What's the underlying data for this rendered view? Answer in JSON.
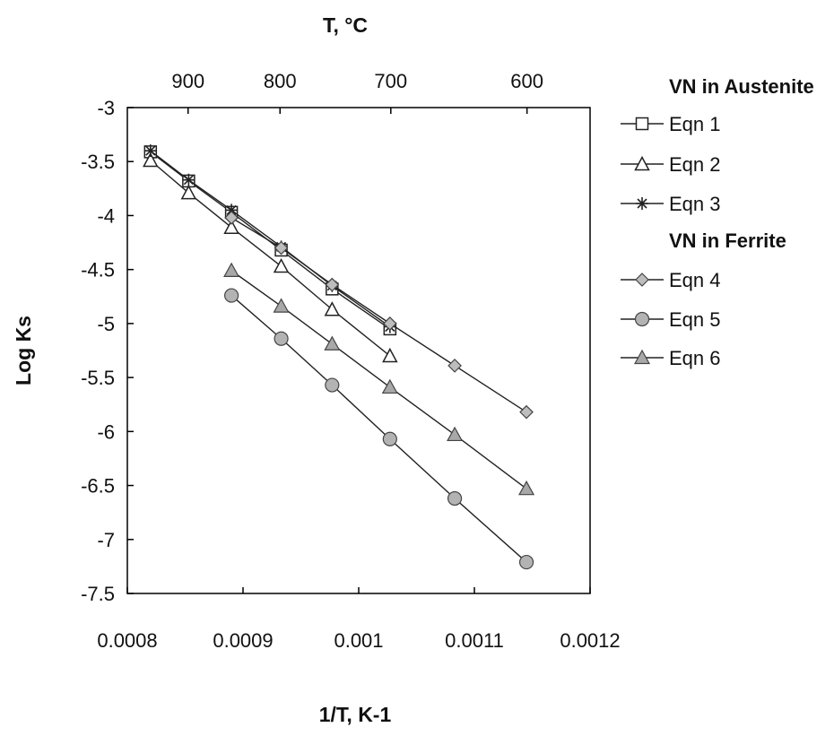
{
  "chart_data": {
    "type": "line",
    "xlabel": "1/T, K-1",
    "ylabel": "Log Ks",
    "x2label": "T, °C",
    "xlim": [
      0.0008,
      0.0012
    ],
    "ylim": [
      -7.5,
      -3
    ],
    "xticks": [
      0.0008,
      0.0009,
      0.001,
      0.0011,
      0.0012
    ],
    "xtick_labels": [
      "0.0008",
      "0.0009",
      "0.001",
      "0.0011",
      "0.0012"
    ],
    "yticks": [
      -3,
      -3.5,
      -4,
      -4.5,
      -5,
      -5.5,
      -6,
      -6.5,
      -7,
      -7.5
    ],
    "ytick_labels": [
      "-3",
      "-3.5",
      "-4",
      "-4.5",
      "-5",
      "-5.5",
      "-6",
      "-6.5",
      "-7",
      "-7.5"
    ],
    "top_axis": {
      "ticks_celsius": [
        900,
        800,
        700,
        600
      ],
      "tick_labels": [
        "900",
        "800",
        "700",
        "600"
      ]
    },
    "grid": false,
    "legend_position": "right",
    "legend_groups": [
      {
        "title": "VN in Austenite",
        "series": [
          0,
          1,
          2
        ]
      },
      {
        "title": "VN in Ferrite",
        "series": [
          3,
          4,
          5
        ]
      }
    ],
    "series": [
      {
        "name": "Eqn 1",
        "marker": "square-open",
        "x": [
          0.00082,
          0.000853,
          0.00089,
          0.000933,
          0.000977,
          0.001027
        ],
        "y": [
          -3.41,
          -3.68,
          -3.97,
          -4.32,
          -4.68,
          -5.05
        ]
      },
      {
        "name": "Eqn 2",
        "marker": "triangle-open",
        "x": [
          0.00082,
          0.000853,
          0.00089,
          0.000933,
          0.000977,
          0.001027
        ],
        "y": [
          -3.49,
          -3.79,
          -4.11,
          -4.47,
          -4.87,
          -5.3
        ]
      },
      {
        "name": "Eqn 3",
        "marker": "asterisk",
        "x": [
          0.00082,
          0.000853,
          0.00089,
          0.000933,
          0.000977,
          0.001027
        ],
        "y": [
          -3.4,
          -3.67,
          -3.95,
          -4.29,
          -4.65,
          -5.03
        ]
      },
      {
        "name": "Eqn 4",
        "marker": "diamond-gray",
        "x": [
          0.00089,
          0.000933,
          0.000977,
          0.001027,
          0.001083,
          0.001145
        ],
        "y": [
          -4.02,
          -4.3,
          -4.64,
          -5.0,
          -5.39,
          -5.82
        ]
      },
      {
        "name": "Eqn 5",
        "marker": "circle-gray",
        "x": [
          0.00089,
          0.000933,
          0.000977,
          0.001027,
          0.001083,
          0.001145
        ],
        "y": [
          -4.74,
          -5.14,
          -5.57,
          -6.07,
          -6.62,
          -7.21
        ]
      },
      {
        "name": "Eqn 6",
        "marker": "triangle-gray",
        "x": [
          0.00089,
          0.000933,
          0.000977,
          0.001027,
          0.001083,
          0.001145
        ],
        "y": [
          -4.51,
          -4.84,
          -5.19,
          -5.59,
          -6.03,
          -6.53
        ]
      }
    ]
  }
}
